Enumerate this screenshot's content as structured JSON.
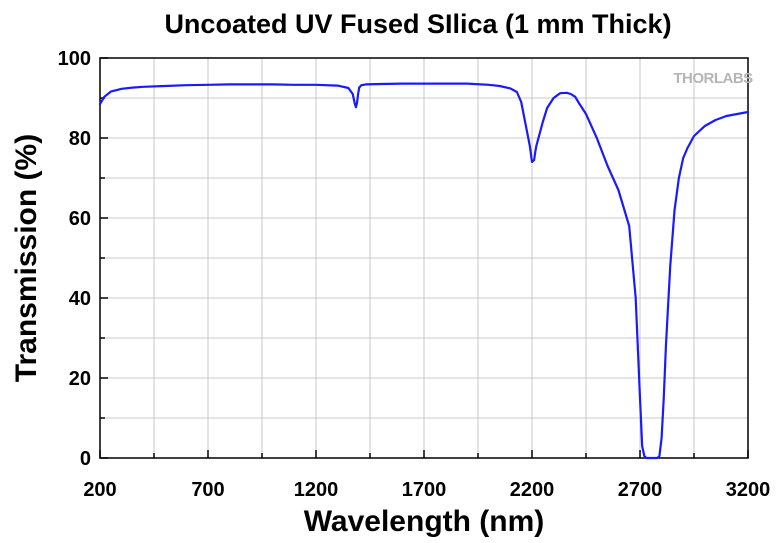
{
  "chart_data": {
    "type": "line",
    "title": "Uncoated UV Fused SIlica (1 mm Thick)",
    "xlabel": "Wavelength (nm)",
    "ylabel": "Transmission (%)",
    "xlim": [
      200,
      3200
    ],
    "ylim": [
      0,
      100
    ],
    "xticks": [
      200,
      700,
      1200,
      1700,
      2200,
      2700,
      3200
    ],
    "yticks": [
      0,
      20,
      40,
      60,
      80,
      100
    ],
    "grid": true,
    "line_color": "#1a1aff",
    "logo_text": "THORLABS",
    "series": [
      {
        "x": [
          200,
          220,
          250,
          300,
          350,
          400,
          500,
          600,
          700,
          800,
          900,
          1000,
          1100,
          1200,
          1300,
          1350,
          1370,
          1380,
          1385,
          1390,
          1395,
          1400,
          1410,
          1430,
          1500,
          1600,
          1700,
          1800,
          1900,
          2000,
          2050,
          2100,
          2130,
          2150,
          2170,
          2190,
          2200,
          2210,
          2215,
          2220,
          2230,
          2250,
          2270,
          2300,
          2330,
          2360,
          2380,
          2400,
          2420,
          2450,
          2500,
          2550,
          2600,
          2650,
          2680,
          2700,
          2710,
          2720,
          2730,
          2740,
          2750,
          2760,
          2770,
          2780,
          2790,
          2800,
          2810,
          2820,
          2840,
          2860,
          2880,
          2900,
          2920,
          2950,
          3000,
          3050,
          3100,
          3150,
          3200
        ],
        "y": [
          88.5,
          90.3,
          91.6,
          92.3,
          92.6,
          92.8,
          93.0,
          93.2,
          93.3,
          93.4,
          93.4,
          93.4,
          93.3,
          93.3,
          93.1,
          92.5,
          91.0,
          88.5,
          87.7,
          88.8,
          91.0,
          92.6,
          93.2,
          93.4,
          93.5,
          93.6,
          93.6,
          93.6,
          93.6,
          93.3,
          93.0,
          92.4,
          91.5,
          89.0,
          83.5,
          78.0,
          74.0,
          74.5,
          76.5,
          78.0,
          80.0,
          84.0,
          87.5,
          90.0,
          91.2,
          91.3,
          91.0,
          90.3,
          88.5,
          86.0,
          80.0,
          73.0,
          67.0,
          58.0,
          40.0,
          15.0,
          3.0,
          0.5,
          0.0,
          0.0,
          0.0,
          0.0,
          0.0,
          0.0,
          0.5,
          5.0,
          15.0,
          28.0,
          48.0,
          62.0,
          70.0,
          75.0,
          77.5,
          80.5,
          83.0,
          84.5,
          85.5,
          86.0,
          86.5
        ]
      }
    ]
  }
}
